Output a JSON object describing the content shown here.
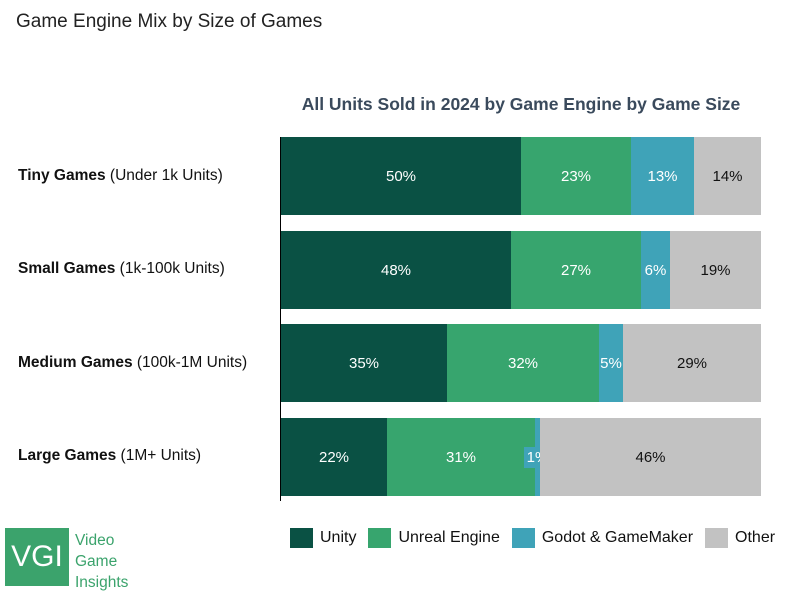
{
  "page_title": "Game Engine Mix by Size of Games",
  "chart_data": {
    "type": "bar",
    "orientation": "horizontal",
    "stacked": true,
    "percent_stacked": true,
    "title": "All Units Sold in 2024 by Game Engine by Game Size",
    "categories": [
      {
        "name": "Tiny Games",
        "detail": "(Under 1k Units)"
      },
      {
        "name": "Small Games",
        "detail": "(1k-100k Units)"
      },
      {
        "name": "Medium Games",
        "detail": "(100k-1M Units)"
      },
      {
        "name": "Large Games",
        "detail": "(1M+ Units)"
      }
    ],
    "series": [
      {
        "name": "Unity",
        "color": "#0a5144",
        "text_color": "#ffffff",
        "values": [
          50,
          48,
          35,
          22
        ],
        "labels": [
          "50%",
          "48%",
          "35%",
          "22%"
        ]
      },
      {
        "name": "Unreal Engine",
        "color": "#37a56e",
        "text_color": "#ffffff",
        "values": [
          23,
          27,
          32,
          31
        ],
        "labels": [
          "23%",
          "27%",
          "32%",
          "31%"
        ]
      },
      {
        "name": "Godot & GameMaker",
        "color": "#3fa3b8",
        "text_color": "#ffffff",
        "values": [
          13,
          6,
          5,
          1
        ],
        "labels": [
          "13%",
          "6%",
          "5%",
          "1%"
        ]
      },
      {
        "name": "Other",
        "color": "#c2c2c2",
        "text_color": "#111111",
        "values": [
          14,
          19,
          29,
          46
        ],
        "labels": [
          "14%",
          "19%",
          "29%",
          "46%"
        ]
      }
    ],
    "xlim": [
      0,
      100
    ],
    "legend_position": "bottom",
    "grid": false
  },
  "logo": {
    "mark": "VGI",
    "words": [
      "Video",
      "Game",
      "Insights"
    ],
    "color": "#3ba36c"
  }
}
